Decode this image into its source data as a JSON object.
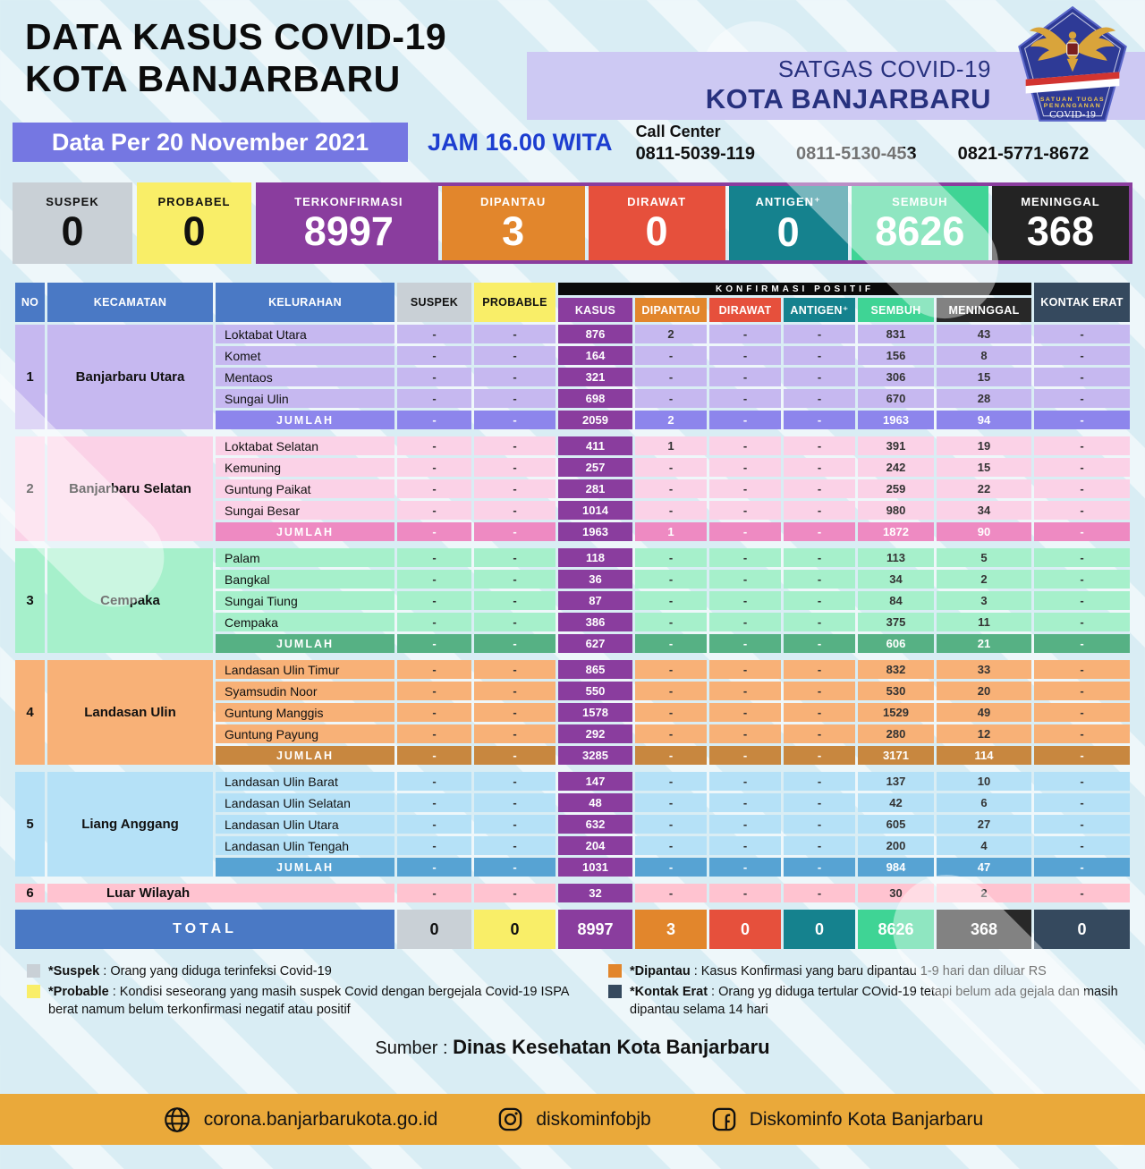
{
  "header": {
    "title_line1": "DATA KASUS COVID-19",
    "title_line2": "KOTA BANJARBARU",
    "satgas_line1": "SATGAS COVID-19",
    "satgas_line2": "KOTA BANJARBARU",
    "logo": {
      "line1": "SATUAN TUGAS",
      "line2": "PENANGANAN",
      "line3": "COVID-19"
    },
    "date_label": "Data Per 20 November 2021",
    "time_label": "JAM 16.00 WITA",
    "call_center_label": "Call Center",
    "call_numbers": [
      "0811-5039-119",
      "0811-5130-453",
      "0821-5771-8672"
    ]
  },
  "colors": {
    "header_blue": "#4a79c5",
    "suspek_gray": "#c9d0d6",
    "probable_yellow": "#f9ee68",
    "kasus_purple": "#8a3d9e",
    "dipantau_orange": "#e2862c",
    "dirawat_red": "#e6503c",
    "antigen_teal": "#15828e",
    "sembuh_green": "#3fd495",
    "meninggal_dark": "#282828",
    "kontak_navy": "#35495e",
    "date_bar": "#7577e2",
    "jam_blue": "#1d3ed0",
    "satgas_navy": "#27317e",
    "band_lavender": "#cdc9f3",
    "footer_amber": "#eaa93a"
  },
  "summary": [
    {
      "label": "SUSPEK",
      "value": "0",
      "bg": "#c9d0d6",
      "fg": "#111111",
      "group": false
    },
    {
      "label": "PROBABEL",
      "value": "0",
      "bg": "#f9ee68",
      "fg": "#111111",
      "group": false
    },
    {
      "label": "TERKONFIRMASI",
      "value": "8997",
      "bg": "#8a3d9e",
      "fg": "#ffffff",
      "group": true
    },
    {
      "label": "DIPANTAU",
      "value": "3",
      "bg": "#e2862c",
      "fg": "#ffffff",
      "group": true
    },
    {
      "label": "DIRAWAT",
      "value": "0",
      "bg": "#e6503c",
      "fg": "#ffffff",
      "group": true
    },
    {
      "label": "ANTIGEN⁺",
      "value": "0",
      "bg": "#15828e",
      "fg": "#ffffff",
      "group": true
    },
    {
      "label": "SEMBUH",
      "value": "8626",
      "bg": "#3fd495",
      "fg": "#ffffff",
      "group": true
    },
    {
      "label": "MENINGGAL",
      "value": "368",
      "bg": "#232323",
      "fg": "#ffffff",
      "group": true
    }
  ],
  "table": {
    "group_header": "KONFIRMASI POSITIF",
    "columns": {
      "no": "NO",
      "kecamatan": "KECAMATAN",
      "kelurahan": "KELURAHAN",
      "suspek": "SUSPEK",
      "probable": "PROBABLE",
      "kasus": "KASUS",
      "dipantau": "DIPANTAU",
      "dirawat": "DIRAWAT",
      "antigen": "ANTIGEN⁺",
      "sembuh": "SEMBUH",
      "meninggal": "MENINGGAL",
      "kontak": "KONTAK ERAT"
    },
    "sections": [
      {
        "no": "1",
        "kecamatan": "Banjarbaru Utara",
        "colors": {
          "light": "#c6b8f0",
          "dark": "#8d85ec"
        },
        "rows": [
          {
            "kelurahan": "Loktabat Utara",
            "suspek": "-",
            "probable": "-",
            "kasus": "876",
            "dipantau": "2",
            "dirawat": "-",
            "antigen": "-",
            "sembuh": "831",
            "meninggal": "43",
            "kontak": "-"
          },
          {
            "kelurahan": "Komet",
            "suspek": "-",
            "probable": "-",
            "kasus": "164",
            "dipantau": "-",
            "dirawat": "-",
            "antigen": "-",
            "sembuh": "156",
            "meninggal": "8",
            "kontak": "-"
          },
          {
            "kelurahan": "Mentaos",
            "suspek": "-",
            "probable": "-",
            "kasus": "321",
            "dipantau": "-",
            "dirawat": "-",
            "antigen": "-",
            "sembuh": "306",
            "meninggal": "15",
            "kontak": "-"
          },
          {
            "kelurahan": "Sungai Ulin",
            "suspek": "-",
            "probable": "-",
            "kasus": "698",
            "dipantau": "-",
            "dirawat": "-",
            "antigen": "-",
            "sembuh": "670",
            "meninggal": "28",
            "kontak": "-"
          }
        ],
        "jumlah": {
          "label": "JUMLAH",
          "suspek": "-",
          "probable": "-",
          "kasus": "2059",
          "dipantau": "2",
          "dirawat": "-",
          "antigen": "-",
          "sembuh": "1963",
          "meninggal": "94",
          "kontak": "-"
        }
      },
      {
        "no": "2",
        "kecamatan": "Banjarbaru Selatan",
        "colors": {
          "light": "#fbd2e7",
          "dark": "#ee8ac2"
        },
        "rows": [
          {
            "kelurahan": "Loktabat Selatan",
            "suspek": "-",
            "probable": "-",
            "kasus": "411",
            "dipantau": "1",
            "dirawat": "-",
            "antigen": "-",
            "sembuh": "391",
            "meninggal": "19",
            "kontak": "-"
          },
          {
            "kelurahan": "Kemuning",
            "suspek": "-",
            "probable": "-",
            "kasus": "257",
            "dipantau": "-",
            "dirawat": "-",
            "antigen": "-",
            "sembuh": "242",
            "meninggal": "15",
            "kontak": "-"
          },
          {
            "kelurahan": "Guntung Paikat",
            "suspek": "-",
            "probable": "-",
            "kasus": "281",
            "dipantau": "-",
            "dirawat": "-",
            "antigen": "-",
            "sembuh": "259",
            "meninggal": "22",
            "kontak": "-"
          },
          {
            "kelurahan": "Sungai Besar",
            "suspek": "-",
            "probable": "-",
            "kasus": "1014",
            "dipantau": "-",
            "dirawat": "-",
            "antigen": "-",
            "sembuh": "980",
            "meninggal": "34",
            "kontak": "-"
          }
        ],
        "jumlah": {
          "label": "JUMLAH",
          "suspek": "-",
          "probable": "-",
          "kasus": "1963",
          "dipantau": "1",
          "dirawat": "-",
          "antigen": "-",
          "sembuh": "1872",
          "meninggal": "90",
          "kontak": "-"
        }
      },
      {
        "no": "3",
        "kecamatan": "Cempaka",
        "colors": {
          "light": "#a6f0cb",
          "dark": "#56b184"
        },
        "rows": [
          {
            "kelurahan": "Palam",
            "suspek": "-",
            "probable": "-",
            "kasus": "118",
            "dipantau": "-",
            "dirawat": "-",
            "antigen": "-",
            "sembuh": "113",
            "meninggal": "5",
            "kontak": "-"
          },
          {
            "kelurahan": "Bangkal",
            "suspek": "-",
            "probable": "-",
            "kasus": "36",
            "dipantau": "-",
            "dirawat": "-",
            "antigen": "-",
            "sembuh": "34",
            "meninggal": "2",
            "kontak": "-"
          },
          {
            "kelurahan": "Sungai Tiung",
            "suspek": "-",
            "probable": "-",
            "kasus": "87",
            "dipantau": "-",
            "dirawat": "-",
            "antigen": "-",
            "sembuh": "84",
            "meninggal": "3",
            "kontak": "-"
          },
          {
            "kelurahan": "Cempaka",
            "suspek": "-",
            "probable": "-",
            "kasus": "386",
            "dipantau": "-",
            "dirawat": "-",
            "antigen": "-",
            "sembuh": "375",
            "meninggal": "11",
            "kontak": "-"
          }
        ],
        "jumlah": {
          "label": "JUMLAH",
          "suspek": "-",
          "probable": "-",
          "kasus": "627",
          "dipantau": "-",
          "dirawat": "-",
          "antigen": "-",
          "sembuh": "606",
          "meninggal": "21",
          "kontak": "-"
        }
      },
      {
        "no": "4",
        "kecamatan": "Landasan Ulin",
        "colors": {
          "light": "#f8b177",
          "dark": "#c8873f"
        },
        "rows": [
          {
            "kelurahan": "Landasan Ulin Timur",
            "suspek": "-",
            "probable": "-",
            "kasus": "865",
            "dipantau": "-",
            "dirawat": "-",
            "antigen": "-",
            "sembuh": "832",
            "meninggal": "33",
            "kontak": "-"
          },
          {
            "kelurahan": "Syamsudin Noor",
            "suspek": "-",
            "probable": "-",
            "kasus": "550",
            "dipantau": "-",
            "dirawat": "-",
            "antigen": "-",
            "sembuh": "530",
            "meninggal": "20",
            "kontak": "-"
          },
          {
            "kelurahan": "Guntung Manggis",
            "suspek": "-",
            "probable": "-",
            "kasus": "1578",
            "dipantau": "-",
            "dirawat": "-",
            "antigen": "-",
            "sembuh": "1529",
            "meninggal": "49",
            "kontak": "-"
          },
          {
            "kelurahan": "Guntung Payung",
            "suspek": "-",
            "probable": "-",
            "kasus": "292",
            "dipantau": "-",
            "dirawat": "-",
            "antigen": "-",
            "sembuh": "280",
            "meninggal": "12",
            "kontak": "-"
          }
        ],
        "jumlah": {
          "label": "JUMLAH",
          "suspek": "-",
          "probable": "-",
          "kasus": "3285",
          "dipantau": "-",
          "dirawat": "-",
          "antigen": "-",
          "sembuh": "3171",
          "meninggal": "114",
          "kontak": "-"
        }
      },
      {
        "no": "5",
        "kecamatan": "Liang Anggang",
        "colors": {
          "light": "#b5e1f7",
          "dark": "#57a3d3"
        },
        "rows": [
          {
            "kelurahan": "Landasan Ulin Barat",
            "suspek": "-",
            "probable": "-",
            "kasus": "147",
            "dipantau": "-",
            "dirawat": "-",
            "antigen": "-",
            "sembuh": "137",
            "meninggal": "10",
            "kontak": "-"
          },
          {
            "kelurahan": "Landasan Ulin Selatan",
            "suspek": "-",
            "probable": "-",
            "kasus": "48",
            "dipantau": "-",
            "dirawat": "-",
            "antigen": "-",
            "sembuh": "42",
            "meninggal": "6",
            "kontak": "-"
          },
          {
            "kelurahan": "Landasan Ulin Utara",
            "suspek": "-",
            "probable": "-",
            "kasus": "632",
            "dipantau": "-",
            "dirawat": "-",
            "antigen": "-",
            "sembuh": "605",
            "meninggal": "27",
            "kontak": "-"
          },
          {
            "kelurahan": "Landasan Ulin Tengah",
            "suspek": "-",
            "probable": "-",
            "kasus": "204",
            "dipantau": "-",
            "dirawat": "-",
            "antigen": "-",
            "sembuh": "200",
            "meninggal": "4",
            "kontak": "-"
          }
        ],
        "jumlah": {
          "label": "JUMLAH",
          "suspek": "-",
          "probable": "-",
          "kasus": "1031",
          "dipantau": "-",
          "dirawat": "-",
          "antigen": "-",
          "sembuh": "984",
          "meninggal": "47",
          "kontak": "-"
        }
      },
      {
        "no": "6",
        "kecamatan": "Luar Wilayah",
        "colors": {
          "light": "#ffc3d0",
          "dark": "#ffc3d0"
        },
        "single": {
          "suspek": "-",
          "probable": "-",
          "kasus": "32",
          "dipantau": "-",
          "dirawat": "-",
          "antigen": "-",
          "sembuh": "30",
          "meninggal": "2",
          "kontak": "-"
        }
      }
    ],
    "total": {
      "label": "TOTAL",
      "suspek": "0",
      "probable": "0",
      "kasus": "8997",
      "dipantau": "3",
      "dirawat": "0",
      "antigen": "0",
      "sembuh": "8626",
      "meninggal": "368",
      "kontak": "0"
    }
  },
  "legend": {
    "left": [
      {
        "color": "#c9d0d6",
        "term": "*Suspek",
        "desc": "Orang yang diduga terinfeksi Covid-19"
      },
      {
        "color": "#f9ee68",
        "term": "*Probable",
        "desc": "Kondisi seseorang yang masih suspek Covid dengan bergejala Covid-19 ISPA berat namum belum terkonfirmasi negatif atau positif"
      }
    ],
    "right": [
      {
        "color": "#e2862c",
        "term": "*Dipantau",
        "desc": "Kasus Konfirmasi yang baru dipantau 1-9 hari dan diluar RS"
      },
      {
        "color": "#35495e",
        "term": "*Kontak Erat",
        "desc": "Orang yg diduga tertular COvid-19 tetapi belum ada gejala dan masih dipantau selama 14 hari"
      }
    ]
  },
  "source": {
    "prefix": "Sumber :",
    "name": "Dinas Kesehatan Kota Banjarbaru"
  },
  "footer": [
    {
      "icon": "globe-icon",
      "text": "corona.banjarbarukota.go.id"
    },
    {
      "icon": "instagram-icon",
      "text": "diskominfobjb"
    },
    {
      "icon": "facebook-icon",
      "text": "Diskominfo Kota Banjarbaru"
    }
  ]
}
